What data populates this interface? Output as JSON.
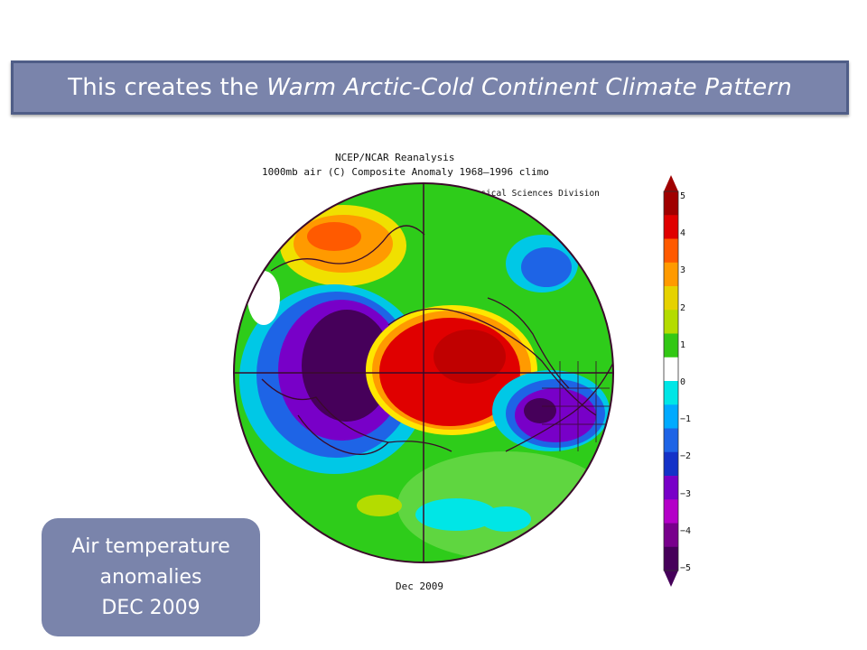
{
  "banner": {
    "text_plain": "This creates the ",
    "text_italic": "Warm Arctic-Cold Continent Climate Pattern"
  },
  "figure": {
    "title_line1": "NCEP/NCAR Reanalysis",
    "title_line2": "1000mb air (C) Composite Anomaly 1968–1996 climo",
    "credit": "NOAA/ESRL Physical Sciences Division",
    "date_label": "Dec 2009"
  },
  "colorbar": {
    "labels": [
      "5",
      "4",
      "3",
      "2",
      "1",
      "0",
      "−1",
      "−2",
      "−3",
      "−4",
      "−5"
    ],
    "colors": [
      "#a00000",
      "#e00000",
      "#ff5a00",
      "#ff9a00",
      "#e6d200",
      "#b4dc00",
      "#32c814",
      "#ffffff",
      "#00e6e6",
      "#00aaff",
      "#1e64e6",
      "#1432c8",
      "#7800c8",
      "#b400c8",
      "#78008c",
      "#46005a"
    ]
  },
  "caption": {
    "line1": "Air temperature",
    "line2": "anomalies",
    "line3": "DEC 2009"
  }
}
